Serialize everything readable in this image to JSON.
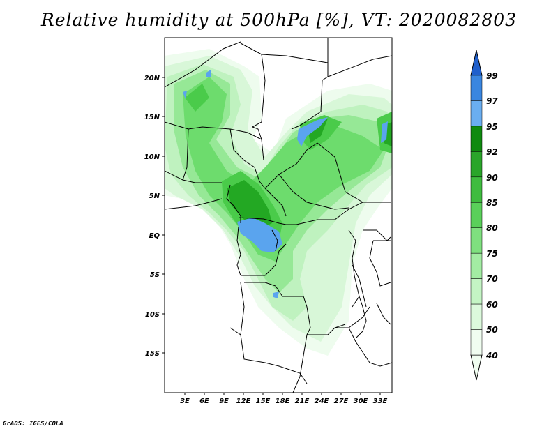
{
  "title": "Relative humidity at 500hPa [%], VT: 2020082803",
  "footer": "GrADS: IGES/COLA",
  "map": {
    "lat_labels": [
      "20N",
      "15N",
      "10N",
      "5N",
      "EQ",
      "5S",
      "10S",
      "15S"
    ],
    "lon_labels": [
      "3E",
      "6E",
      "9E",
      "12E",
      "15E",
      "18E",
      "21E",
      "24E",
      "27E",
      "30E",
      "33E"
    ]
  },
  "colorbar": {
    "labels": [
      "99",
      "97",
      "95",
      "92",
      "90",
      "85",
      "80",
      "75",
      "70",
      "60",
      "50",
      "40"
    ],
    "colors": [
      "#1f5fcc",
      "#3a86e0",
      "#6aaef0",
      "#0f8a0f",
      "#2aa52a",
      "#3fbc3f",
      "#5ad05a",
      "#7fe07f",
      "#a3eca3",
      "#c4f4c4",
      "#dcf9dc",
      "#f0fdf0"
    ]
  }
}
